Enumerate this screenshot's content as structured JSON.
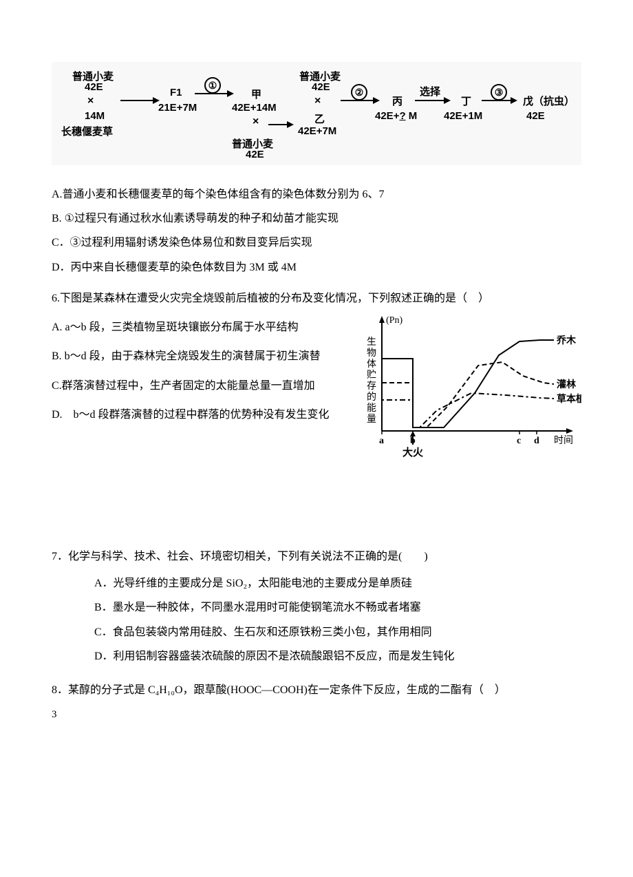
{
  "diagram1": {
    "bg": "#f8f8f8",
    "left1_top": "普通小麦",
    "left1_sub": "42E",
    "left2_top": "长穗偃麦草",
    "left2_sub": "14M",
    "f1": "F1",
    "f1_sub": "21E+7M",
    "jia": "甲",
    "jia_sub": "42E+14M",
    "mid_top": "普通小麦",
    "mid_sub": "42E",
    "yi": "乙",
    "yi_sub": "42E+7M",
    "bing": "丙",
    "bing_sub": "42E+? M",
    "xuan": "选择",
    "ding": "丁",
    "ding_sub": "42E+1M",
    "wu": "戊（抗虫）",
    "wu_sub": "42E",
    "under": "普通小麦",
    "under_sub": "42E",
    "c1": "①",
    "c2": "②",
    "c3": "③",
    "cross": "×",
    "qmark": "?"
  },
  "q5": {
    "A": "A.普通小麦和长穗偃麦草的每个染色体组含有的染色体数分别为 6、7",
    "B": "B. ①过程只有通过秋水仙素诱导萌发的种子和幼苗才能实现",
    "C": "C．③过程利用辐射诱发染色体易位和数目变异后实现",
    "D": "D．丙中来自长穗偃麦草的染色体数目为 3M 或 4M"
  },
  "q6": {
    "stem": "6.下图是某森林在遭受火灾完全烧毁前后植被的分布及变化情况，下列叙述正确的是（　）",
    "A": "A. a～b 段，三类植物呈斑块镶嵌分布属于水平结构",
    "B": "B. b～d 段，由于森林完全烧毁发生的演替属于初生演替",
    "C": "C.群落演替过程中，生产者固定的太能量总量一直增加",
    "D": "D.　b～d 段群落演替的过程中群落的优势种没有发生变化"
  },
  "chart": {
    "yaxis": "生物体贮存的能量",
    "yunit": "(Pn)",
    "xaxis": "时间",
    "ticks": {
      "a": "a",
      "b": "b",
      "c": "c",
      "d": "d"
    },
    "fire": "大火",
    "s1": "乔木",
    "s2": "灌林",
    "s3": "草本植物",
    "colors": {
      "axis": "#000000",
      "line1": "#000000",
      "line2": "#000000",
      "line3": "#000000"
    },
    "xlim": [
      0,
      290
    ],
    "ylim": [
      0,
      160
    ],
    "tick_x": {
      "a": 30,
      "b": 75,
      "c": 230,
      "d": 255
    },
    "series": {
      "tree": [
        [
          30,
          105
        ],
        [
          75,
          105
        ],
        [
          75,
          5
        ],
        [
          120,
          5
        ],
        [
          165,
          55
        ],
        [
          200,
          110
        ],
        [
          230,
          130
        ],
        [
          260,
          132
        ],
        [
          280,
          132
        ]
      ],
      "shrub": [
        [
          30,
          70
        ],
        [
          75,
          70
        ],
        [
          75,
          5
        ],
        [
          95,
          5
        ],
        [
          125,
          35
        ],
        [
          170,
          95
        ],
        [
          205,
          100
        ],
        [
          235,
          80
        ],
        [
          265,
          70
        ],
        [
          280,
          68
        ]
      ],
      "herb": [
        [
          30,
          45
        ],
        [
          75,
          45
        ],
        [
          75,
          5
        ],
        [
          85,
          5
        ],
        [
          110,
          30
        ],
        [
          160,
          55
        ],
        [
          210,
          52
        ],
        [
          260,
          48
        ],
        [
          280,
          47
        ]
      ]
    },
    "dash_shrub": "7 4",
    "dash_herb": "3 4 8 4"
  },
  "q7": {
    "stem": "7．化学与科学、技术、社会、环境密切相关，下列有关说法不正确的是(　　)",
    "A": "A．光导纤维的主要成分是 SiO₂，太阳能电池的主要成分是单质硅",
    "B": "B．墨水是一种胶体，不同墨水混用时可能使钢笔流水不畅或者堵塞",
    "C": "C．食品包装袋内常用硅胶、生石灰和还原铁粉三类小包，其作用相同",
    "D": "D．利用铝制容器盛装浓硫酸的原因不是浓硫酸跟铝不反应，而是发生钝化"
  },
  "q8": {
    "stem": "8．某醇的分子式是 C₄H₁₀O，跟草酸(HOOC—COOH)在一定条件下反应，生成的二酯有（　）"
  },
  "pagenum": "3"
}
